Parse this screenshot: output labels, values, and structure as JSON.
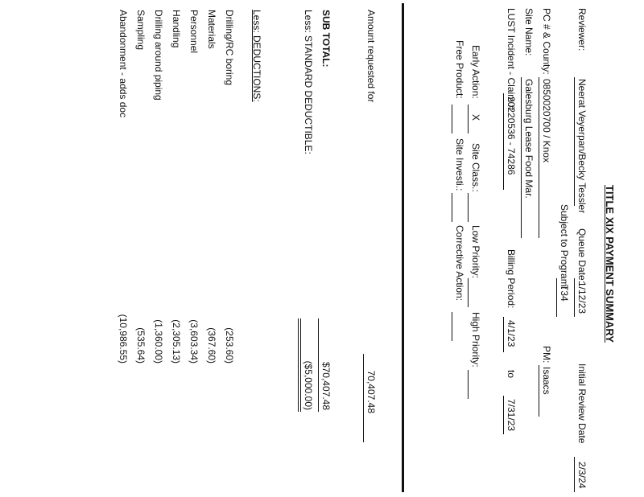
{
  "title": "TITLE XIX PAYMENT SUMMARY",
  "header": {
    "reviewer_label": "Reviewer:",
    "reviewer_value": "Neerat Veyerpan/Becky Tessler",
    "queue_date_label": "Queue Date:",
    "queue_date_value": "1/12/23",
    "initial_review_label": "Initial Review Date",
    "initial_review_value": "2/3/24",
    "subject_label": "Subject to Program:",
    "subject_value": "T34",
    "pc_county_label": "PC # & County:",
    "pc_county_value": "0850020700 / Knox",
    "pm_label": "PM:",
    "pm_value": "Isaacs",
    "site_name_label": "Site Name:",
    "site_name_value": "Galesburg Lease Food Mar.",
    "lust_label": "LUST Incident - Claim #",
    "lust_value": "20220536 - 74286",
    "billing_label": "Billing Period:",
    "billing_from": "4/1/23",
    "billing_to_word": "to",
    "billing_to": "7/31/23"
  },
  "action": {
    "early_label": "Early Action:",
    "early_value": "X",
    "site_class_label": "Site Class.:",
    "low_label": "Low Priority:",
    "high_label": "High Priority:",
    "free_label": "Free Product:",
    "site_invest_label": "Site Investi.:",
    "corrective_label": "Corrective Action:"
  },
  "summary": {
    "amount_label": "Amount requested for",
    "amount_value": "70,407.48",
    "subtotal_label": "SUB TOTAL:",
    "subtotal_value": "$70,407.48",
    "deductible_label": "Less: STANDARD DEDUCTIBLE:",
    "deductible_value": "($5,000.00)",
    "deductions_label": "Less: DEDUCTIONS:"
  },
  "deductions": [
    {
      "label": "Drilling/RC boring",
      "value": "(253.60)"
    },
    {
      "label": "Materials",
      "value": "(367.60)"
    },
    {
      "label": "Personnel",
      "value": "(3,603.34)"
    },
    {
      "label": "Handling",
      "value": "(2,305.13)"
    },
    {
      "label": "Drilling around piping",
      "value": "(1,360.00)"
    },
    {
      "label": "Sampling",
      "value": "(535.64)"
    },
    {
      "label": "Abandonment - adds doc",
      "value": "(10,986.55)"
    }
  ]
}
